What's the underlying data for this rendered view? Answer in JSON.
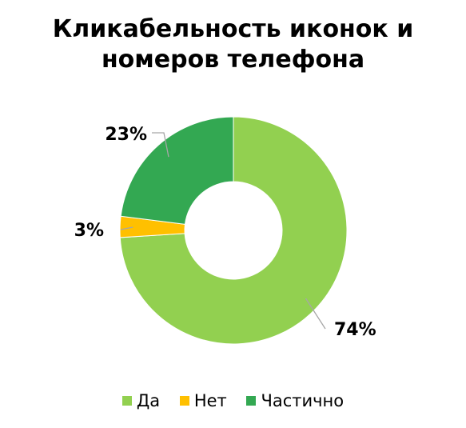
{
  "chart_data": {
    "type": "pie",
    "title": [
      "Кликабельность иконок и",
      "номеров телефона"
    ],
    "categories": [
      "Да",
      "Нет",
      "Частично"
    ],
    "values": [
      74,
      3,
      23
    ],
    "data_labels": [
      "74%",
      "3%",
      "23%"
    ],
    "colors": [
      "#92D050",
      "#FFC000",
      "#33A852"
    ],
    "legend": "bottom"
  }
}
